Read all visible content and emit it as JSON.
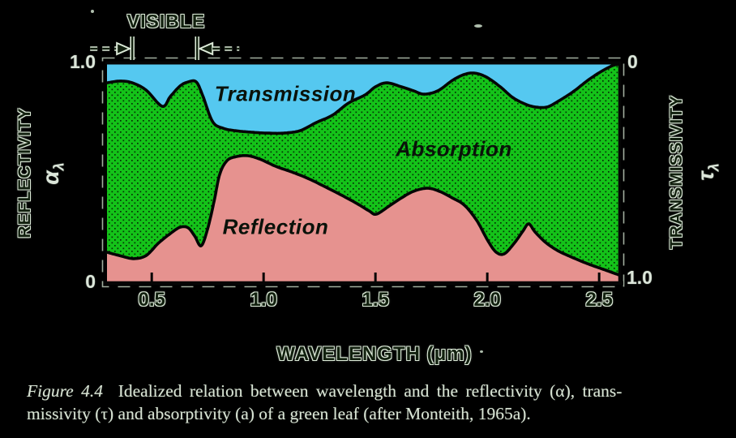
{
  "colors": {
    "background": "#000000",
    "transmission_blue": "#55c8f0",
    "absorption_green": "#14c319",
    "halftone_dot": "#053005",
    "reflection_pink": "#e6928f",
    "curve_black": "#050505",
    "light_text": "#dce6da",
    "dark_outlined_text": "#12200f",
    "halo": "#dcead8",
    "region_label_ink": "#0a120a",
    "caption_text": "#d8e3d4",
    "scan_fringe": "#c9dac6"
  },
  "figure": {
    "visible_band_label": "VISIBLE",
    "regions": {
      "transmission": "Transmission",
      "absorption": "Absorption",
      "reflection": "Reflection"
    },
    "left_axis": {
      "title": "REFLECTIVITY",
      "symbol": "α",
      "symbol_sub": "λ",
      "top_value": "1.0",
      "bottom_value": "0"
    },
    "right_axis": {
      "title": "TRANSMISSIVITY",
      "symbol": "τ",
      "symbol_sub": "λ",
      "top_value": "0",
      "bottom_value": "1.0"
    },
    "x_axis": {
      "title": "WAVELENGTH (μm)",
      "tick_labels": [
        "0.5",
        "1.0",
        "1.5",
        "2.0",
        "2.5"
      ]
    },
    "caption": {
      "figure_label": "Figure 4.4",
      "line1_rest": "Idealized relation between wavelength and the reflectivity (α), trans-",
      "line2": "missivity (τ) and absorptivity (a) of a green leaf (after Monteith, 1965a)."
    }
  },
  "chart_data": {
    "type": "area",
    "title": "Idealized spectral response of a green leaf",
    "xlabel": "WAVELENGTH (μm)",
    "x_range_um": [
      0.3,
      2.59
    ],
    "x_ticks_um": [
      0.5,
      1.0,
      1.5,
      2.0,
      2.5
    ],
    "y_left": {
      "label": "REFLECTIVITY αλ",
      "range": [
        0,
        1
      ],
      "direction": "up",
      "shown_values": [
        "1.0 (top)",
        "0 (bottom)"
      ]
    },
    "y_right": {
      "label": "TRANSMISSIVITY τλ",
      "range": [
        0,
        1
      ],
      "direction": "down",
      "shown_values": [
        "0 (top)",
        "1.0 (bottom)"
      ]
    },
    "visible_band_um": [
      0.413,
      0.703
    ],
    "stack_order_top_to_bottom": [
      "Transmission (blue)",
      "Absorption (green halftone)",
      "Reflection (pink)"
    ],
    "grid": false,
    "legend_position": "labels inside areas",
    "series": [
      {
        "name": "transmissivity boundary (fraction transmitted, measured down from top axis)",
        "x_um": [
          0.3,
          0.359,
          0.413,
          0.475,
          0.547,
          0.583,
          0.627,
          0.663,
          0.699,
          0.728,
          0.772,
          0.819,
          0.873,
          0.946,
          1.018,
          1.09,
          1.163,
          1.236,
          1.308,
          1.38,
          1.453,
          1.5,
          1.551,
          1.616,
          1.67,
          1.717,
          1.779,
          1.844,
          1.895,
          1.942,
          1.996,
          2.058,
          2.112,
          2.167,
          2.214,
          2.268,
          2.322,
          2.384,
          2.449,
          2.504,
          2.558,
          2.59
        ],
        "tau": [
          0.092,
          0.084,
          0.092,
          0.125,
          0.198,
          0.154,
          0.106,
          0.088,
          0.088,
          0.15,
          0.267,
          0.297,
          0.308,
          0.315,
          0.319,
          0.319,
          0.308,
          0.271,
          0.238,
          0.183,
          0.147,
          0.11,
          0.092,
          0.11,
          0.128,
          0.143,
          0.128,
          0.081,
          0.055,
          0.048,
          0.066,
          0.11,
          0.157,
          0.187,
          0.201,
          0.201,
          0.172,
          0.132,
          0.081,
          0.044,
          0.015,
          0.007
        ]
      },
      {
        "name": "reflectivity boundary (fraction reflected, measured up from bottom axis)",
        "x_um": [
          0.3,
          0.366,
          0.42,
          0.475,
          0.529,
          0.583,
          0.627,
          0.663,
          0.692,
          0.721,
          0.75,
          0.779,
          0.804,
          0.837,
          0.88,
          0.928,
          0.982,
          1.054,
          1.127,
          1.199,
          1.272,
          1.344,
          1.417,
          1.471,
          1.504,
          1.562,
          1.616,
          1.67,
          1.732,
          1.786,
          1.844,
          1.898,
          1.953,
          2.003,
          2.04,
          2.076,
          2.12,
          2.159,
          2.185,
          2.214,
          2.261,
          2.315,
          2.377,
          2.446,
          2.518,
          2.59
        ],
        "rho": [
          0.143,
          0.125,
          0.114,
          0.128,
          0.183,
          0.227,
          0.256,
          0.253,
          0.216,
          0.172,
          0.249,
          0.374,
          0.495,
          0.557,
          0.575,
          0.579,
          0.564,
          0.531,
          0.505,
          0.476,
          0.44,
          0.403,
          0.363,
          0.33,
          0.315,
          0.352,
          0.388,
          0.418,
          0.432,
          0.418,
          0.388,
          0.355,
          0.286,
          0.194,
          0.143,
          0.136,
          0.183,
          0.238,
          0.271,
          0.234,
          0.187,
          0.15,
          0.121,
          0.092,
          0.066,
          0.04
        ]
      }
    ]
  }
}
